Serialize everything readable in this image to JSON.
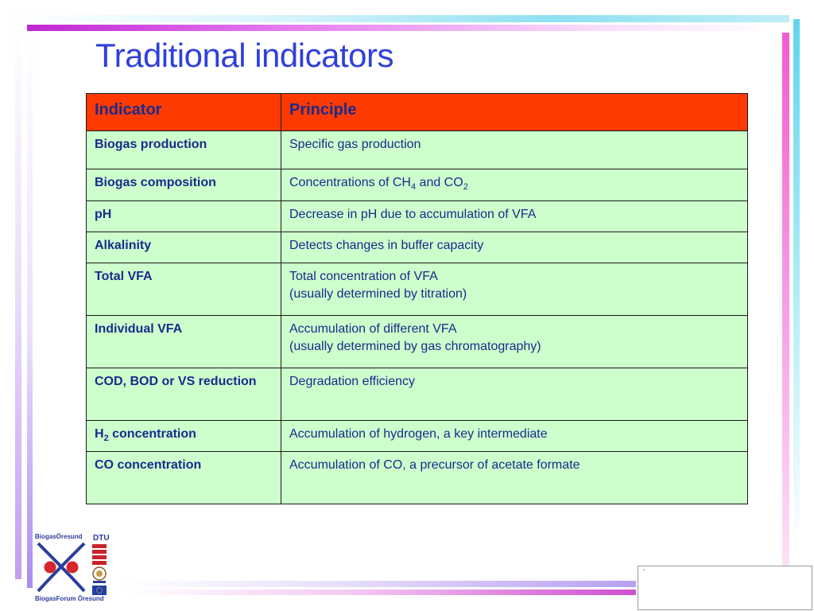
{
  "title": "Traditional indicators",
  "table": {
    "headers": [
      "Indicator",
      "Principle"
    ],
    "rows": [
      {
        "indicator": "Biogas production",
        "principle": [
          "Specific gas production"
        ]
      },
      {
        "indicator": "Biogas composition",
        "principle": [
          "Concentrations of CH4 and CO2"
        ]
      },
      {
        "indicator": "pH",
        "principle": [
          "Decrease in pH due to accumulation of VFA"
        ]
      },
      {
        "indicator": "Alkalinity",
        "principle": [
          "Detects changes in buffer capacity"
        ]
      },
      {
        "indicator": "Total VFA",
        "principle": [
          "Total concentration of VFA",
          "(usually determined by titration)"
        ]
      },
      {
        "indicator": "Individual VFA",
        "principle": [
          "Accumulation of different VFA",
          "(usually determined by gas chromatography)"
        ]
      },
      {
        "indicator": "COD, BOD or VS reduction",
        "principle": [
          "Degradation efficiency"
        ]
      },
      {
        "indicator": "H2 concentration",
        "principle": [
          "Accumulation of hydrogen, a key intermediate"
        ]
      },
      {
        "indicator": "CO concentration",
        "principle": [
          "Accumulation of CO, a precursor of acetate formate"
        ]
      }
    ]
  },
  "logos": {
    "biogas_top": "BiogasÖresund",
    "biogas_bottom": "BiogasForum Öresund",
    "dtu": "DTU",
    "icons": [
      "biogas-oresund-logo-icon",
      "dtu-logo-icon",
      "lund-university-seal-icon",
      "eu-flag-icon"
    ]
  },
  "colors": {
    "title": "#2f3fdf",
    "header_bg": "#ff3a00",
    "cell_bg": "#ccffcc",
    "text": "#1a2a8c"
  }
}
